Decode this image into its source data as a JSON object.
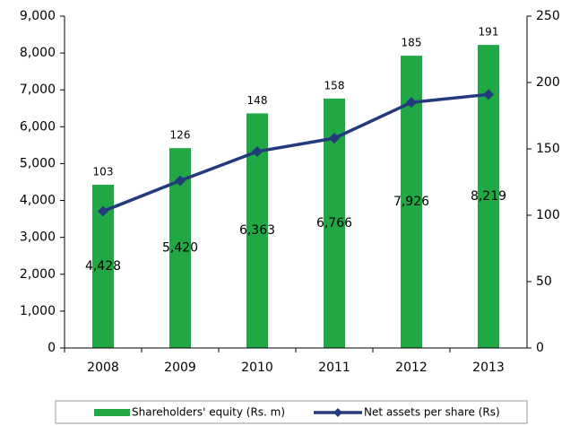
{
  "chart_data": {
    "type": "bar",
    "categories": [
      "2008",
      "2009",
      "2010",
      "2011",
      "2012",
      "2013"
    ],
    "series": [
      {
        "name": "Shareholders' equity (Rs. m)",
        "type": "bar",
        "color": "#1fa843",
        "values": [
          4428,
          5420,
          6363,
          6766,
          7926,
          8219
        ],
        "value_labels": [
          "4,428",
          "5,420",
          "6,363",
          "6,766",
          "7,926",
          "8,219"
        ]
      },
      {
        "name": "Net assets per share (Rs)",
        "type": "line",
        "axis": "y2",
        "color": "#233a7c",
        "values": [
          103,
          126,
          148,
          158,
          185,
          191
        ]
      }
    ],
    "ylim": [
      0,
      9000
    ],
    "yticks": [
      0,
      {
        "value": 1000,
        "label": "1,000"
      },
      {
        "value": 2000,
        "label": "2,000"
      },
      {
        "value": 3000,
        "label": "3,000"
      },
      {
        "value": 4000,
        "label": "4,000"
      },
      {
        "value": 5000,
        "label": "5,000"
      },
      {
        "value": 6000,
        "label": "6,000"
      },
      {
        "value": 7000,
        "label": "7,000"
      },
      {
        "value": 8000,
        "label": "8,000"
      },
      {
        "value": 9000,
        "label": "9,000"
      }
    ],
    "y2lim": [
      0,
      250
    ],
    "y2ticks": [
      0,
      50,
      100,
      150,
      200,
      250
    ],
    "grid": false,
    "legend": "bottom"
  }
}
